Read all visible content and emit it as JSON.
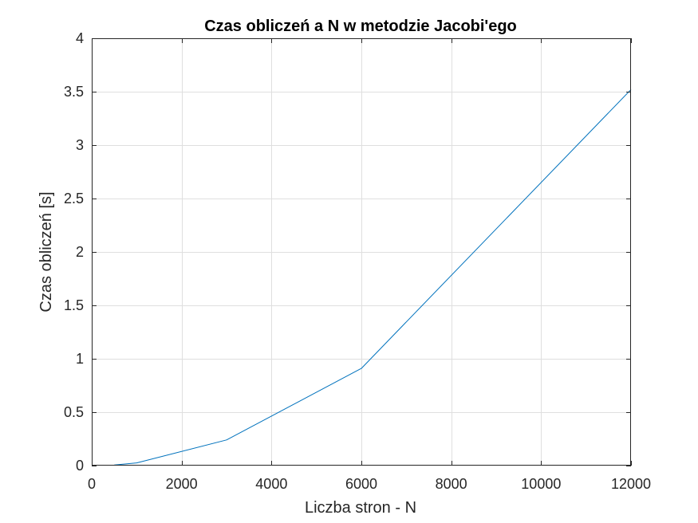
{
  "chart_data": {
    "type": "line",
    "title": "Czas obliczeń a N w metodzie Jacobi'ego",
    "xlabel": "Liczba stron - N",
    "ylabel": "Czas obliczeń [s]",
    "xlim": [
      0,
      12000
    ],
    "ylim": [
      0,
      4
    ],
    "xticks": [
      0,
      2000,
      4000,
      6000,
      8000,
      10000,
      12000
    ],
    "xtick_labels": [
      "0",
      "2000",
      "4000",
      "6000",
      "8000",
      "10000",
      "12000"
    ],
    "yticks": [
      0,
      0.5,
      1,
      1.5,
      2,
      2.5,
      3,
      3.5,
      4
    ],
    "ytick_labels": [
      "0",
      "0.5",
      "1",
      "1.5",
      "2",
      "2.5",
      "3",
      "3.5",
      "4"
    ],
    "grid": true,
    "series": [
      {
        "color": "#0072BD",
        "x": [
          500,
          1000,
          3000,
          6000,
          12000
        ],
        "y": [
          0.005,
          0.025,
          0.24,
          0.91,
          3.52
        ]
      }
    ]
  }
}
